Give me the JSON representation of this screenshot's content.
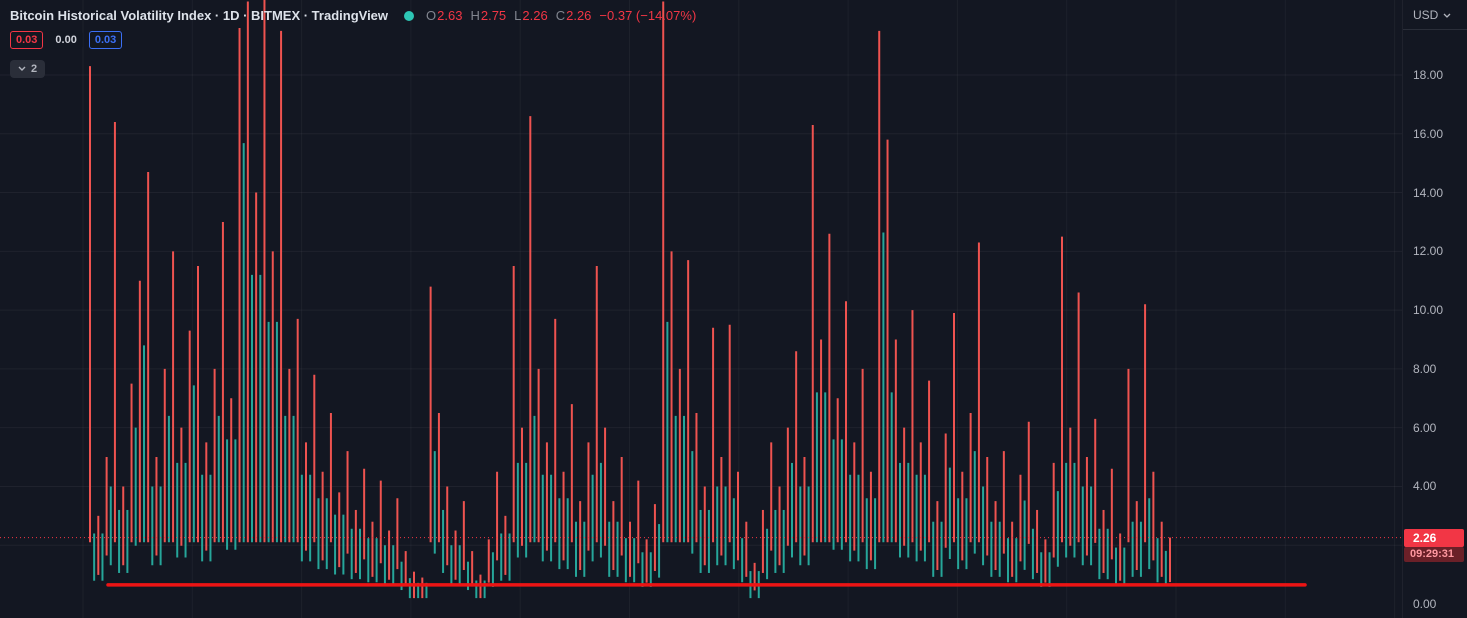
{
  "header": {
    "title": "Bitcoin Historical Volatility Index · 1D · BITMEX · TradingView",
    "ohlc": {
      "open_label": "O",
      "open": "2.63",
      "high_label": "H",
      "high": "2.75",
      "low_label": "L",
      "low": "2.26",
      "close_label": "C",
      "close": "2.26",
      "change": "−0.37 (−14.07%)"
    },
    "badges": [
      {
        "value": "0.03",
        "accent": "#f23645",
        "bordered": true
      },
      {
        "value": "0.00",
        "accent": "#d1d4dc",
        "bordered": false
      },
      {
        "value": "0.03",
        "accent": "#3b6ff5",
        "bordered": true
      }
    ],
    "collapse_count": "2"
  },
  "price_scale": {
    "currency": "USD",
    "ticks": [
      "18.00",
      "16.00",
      "14.00",
      "12.00",
      "10.00",
      "8.00",
      "6.00",
      "4.00",
      "0.00"
    ],
    "price_label": "2.26",
    "countdown": "09:29:31"
  },
  "chart_data": {
    "type": "candlestick",
    "title": "Bitcoin Historical Volatility Index",
    "timeframe": "1D",
    "exchange": "BITMEX",
    "currency": "USD",
    "ohlc": {
      "open": 2.63,
      "high": 2.75,
      "low": 2.26,
      "close": 2.26,
      "change": -0.37,
      "change_pct": -14.07
    },
    "ylim": [
      0,
      20.8
    ],
    "y_ticks": [
      2,
      4,
      6,
      8,
      10,
      12,
      14,
      16,
      18
    ],
    "last_price": 2.26,
    "price_line": {
      "value": 2.26,
      "color": "#f23645",
      "style": "dotted"
    },
    "drawn_line": {
      "value": 0.65,
      "color": "#ec1414",
      "width": 3.5,
      "x_from": 108,
      "x_to": 1305
    },
    "colors": {
      "up": "#26a69a",
      "down": "#ef5350"
    },
    "highs": [
      18.3,
      3,
      5,
      16.4,
      4,
      7.5,
      11,
      14.7,
      5,
      8,
      12,
      6,
      9.3,
      11.5,
      5.5,
      8,
      13,
      7,
      19.6,
      20.5,
      14,
      20.8,
      12,
      19.5,
      8,
      9.7,
      5.5,
      7.8,
      4.5,
      6.5,
      3.8,
      5.2,
      3.2,
      4.6,
      2.8,
      4.2,
      2.5,
      3.6,
      1.8,
      1.1,
      0.9,
      10.8,
      6.5,
      4,
      2.5,
      3.5,
      1.8,
      1.0,
      2.2,
      4.5,
      3,
      11.5,
      6,
      16.6,
      8,
      5.5,
      9.7,
      4.5,
      6.8,
      3.5,
      5.5,
      11.5,
      6,
      3.5,
      5,
      2.8,
      4.2,
      2.2,
      3.4,
      20.5,
      12,
      8,
      11.7,
      6.5,
      4,
      9.4,
      5,
      9.5,
      4.5,
      2.8,
      1.4,
      3.2,
      5.5,
      4,
      6,
      8.6,
      5,
      16.3,
      9,
      12.6,
      7,
      10.3,
      5.5,
      8,
      4.5,
      19.5,
      15.8,
      9,
      6,
      10,
      5.5,
      7.6,
      3.5,
      5.8,
      9.9,
      4.5,
      6.5,
      12.3,
      5,
      3.5,
      5.2,
      2.8,
      4.4,
      6.2,
      3.2,
      2.2,
      4.8,
      12.5,
      6,
      10.6,
      5,
      6.3,
      3.2,
      4.6,
      2.4,
      8,
      3.5,
      10.2,
      4.5,
      2.8,
      2.26
    ]
  }
}
